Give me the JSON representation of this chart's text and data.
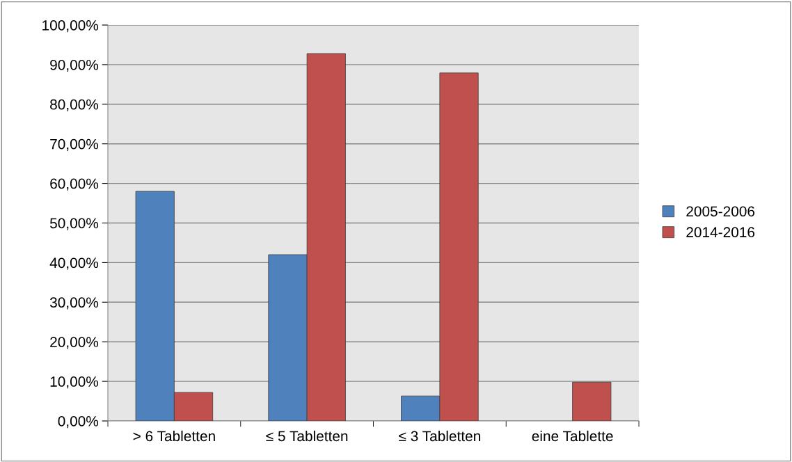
{
  "chart_data": {
    "type": "bar",
    "categories": [
      "> 6 Tabletten",
      "≤ 5 Tabletten",
      "≤ 3 Tabletten",
      "eine Tablette"
    ],
    "series": [
      {
        "name": "2005-2006",
        "color": "#4f81bd",
        "values": [
          58.0,
          42.0,
          6.3,
          null
        ]
      },
      {
        "name": "2014-2016",
        "color": "#c0504d",
        "values": [
          7.2,
          92.8,
          87.9,
          9.8
        ]
      }
    ],
    "ylim": [
      0,
      100
    ],
    "yticks": [
      {
        "value": 0,
        "label": "0,00%"
      },
      {
        "value": 10,
        "label": "10,00%"
      },
      {
        "value": 20,
        "label": "20,00%"
      },
      {
        "value": 30,
        "label": "30,00%"
      },
      {
        "value": 40,
        "label": "40,00%"
      },
      {
        "value": 50,
        "label": "50,00%"
      },
      {
        "value": 60,
        "label": "60,00%"
      },
      {
        "value": 70,
        "label": "70,00%"
      },
      {
        "value": 80,
        "label": "80,00%"
      },
      {
        "value": 90,
        "label": "90,00%"
      },
      {
        "value": 100,
        "label": "100,00%"
      }
    ],
    "grid": "y",
    "legend": "right"
  }
}
